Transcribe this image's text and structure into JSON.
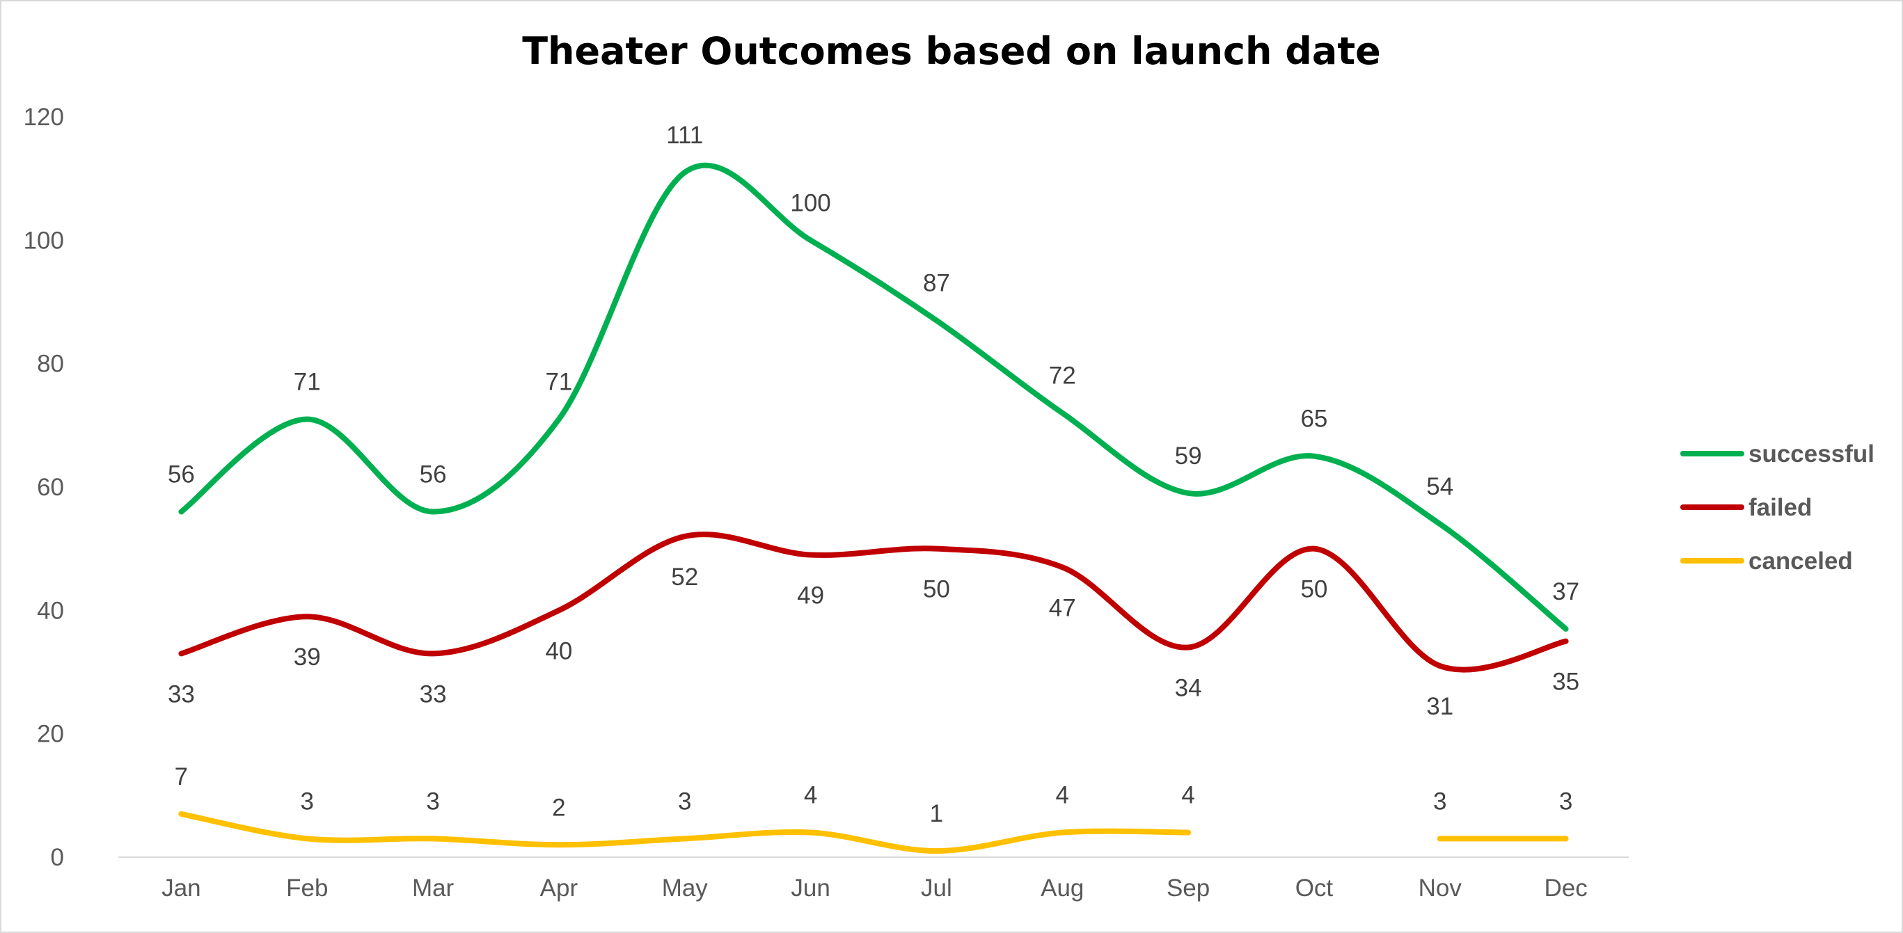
{
  "chart_data": {
    "type": "line",
    "title": "Theater Outcomes based on launch date",
    "xlabel": "",
    "ylabel": "",
    "categories": [
      "Jan",
      "Feb",
      "Mar",
      "Apr",
      "May",
      "Jun",
      "Jul",
      "Aug",
      "Sep",
      "Oct",
      "Nov",
      "Dec"
    ],
    "y_ticks": [
      "0",
      "20",
      "40",
      "60",
      "80",
      "100",
      "120"
    ],
    "ylim": [
      0,
      120
    ],
    "grid": false,
    "smooth": true,
    "legend_position": "right",
    "series": [
      {
        "name": "successful",
        "color": "#00b050",
        "label_position": "above",
        "values": [
          56,
          71,
          56,
          71,
          111,
          100,
          87,
          72,
          59,
          65,
          54,
          37
        ]
      },
      {
        "name": "failed",
        "color": "#c00000",
        "label_position": "below",
        "values": [
          33,
          39,
          33,
          40,
          52,
          49,
          50,
          47,
          34,
          50,
          31,
          35
        ]
      },
      {
        "name": "canceled",
        "color": "#ffc000",
        "label_position": "above",
        "values": [
          7,
          3,
          3,
          2,
          3,
          4,
          1,
          4,
          4,
          null,
          3,
          3
        ]
      }
    ]
  }
}
